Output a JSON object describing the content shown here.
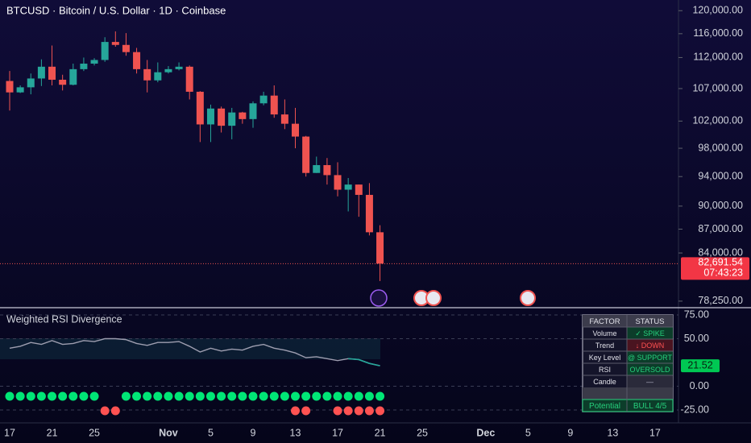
{
  "chart_data": [
    {
      "type": "candlestick",
      "title": "BTCUSD · Bitcoin / U.S. Dollar · 1D · Coinbase",
      "categories": [
        "17",
        null,
        null,
        null,
        "21",
        null,
        null,
        null,
        "25",
        null,
        null,
        null,
        null,
        null,
        null,
        "Nov",
        null,
        null,
        null,
        "5",
        null,
        null,
        null,
        "9",
        null,
        null,
        null,
        "13",
        null,
        null,
        null,
        "17",
        null,
        null,
        null,
        "21",
        null,
        null,
        null,
        "25",
        null,
        null,
        null,
        null,
        null,
        "Dec",
        null,
        null,
        null,
        "5",
        null,
        null,
        null,
        "9",
        null,
        null,
        null,
        "13",
        null,
        null,
        null,
        "17"
      ],
      "open": [
        108200,
        106400,
        107200,
        108600,
        110500,
        108400,
        107600,
        110100,
        111000,
        111600,
        114600,
        114100,
        112900,
        110100,
        108300,
        109600,
        110100,
        110500,
        106500,
        101500,
        103900,
        101300,
        103300,
        102300,
        104700,
        105900,
        103000,
        101600,
        99700,
        94500,
        95600,
        94200,
        92200,
        92900,
        91500,
        86600,
        null,
        null,
        null,
        null,
        null,
        null,
        null,
        null,
        null,
        null,
        null,
        null,
        null,
        null,
        null,
        null,
        null,
        null,
        null,
        null,
        null,
        null,
        null,
        null,
        null,
        null
      ],
      "high": [
        109800,
        107500,
        109400,
        111700,
        114000,
        109200,
        111000,
        112000,
        111900,
        115400,
        116400,
        116100,
        113600,
        111600,
        111200,
        110600,
        111200,
        110700,
        106600,
        104500,
        104200,
        104000,
        103400,
        105000,
        106500,
        107500,
        105300,
        104000,
        99800,
        96800,
        96600,
        96000,
        93800,
        92900,
        93100,
        87500,
        null,
        null,
        null,
        null,
        null,
        null,
        null,
        null,
        null,
        null,
        null,
        null,
        null,
        null,
        null,
        null,
        null,
        null,
        null,
        null,
        null,
        null,
        null,
        null,
        null,
        null
      ],
      "low": [
        103600,
        106300,
        106100,
        107400,
        107500,
        106700,
        107500,
        109800,
        110700,
        111300,
        113800,
        112300,
        109400,
        106400,
        108000,
        109400,
        109900,
        105300,
        98900,
        98900,
        100300,
        99300,
        101600,
        101000,
        104400,
        102500,
        100800,
        98000,
        94000,
        94500,
        92900,
        91300,
        89300,
        88600,
        86200,
        80600,
        null,
        null,
        null,
        null,
        null,
        null,
        null,
        null,
        null,
        null,
        null,
        null,
        null,
        null,
        null,
        null,
        null,
        null,
        null,
        null,
        null,
        null,
        null,
        null,
        null,
        null
      ],
      "close": [
        106400,
        107200,
        108600,
        110500,
        108400,
        107600,
        110100,
        111000,
        111600,
        114600,
        114100,
        112900,
        110100,
        108300,
        109600,
        110100,
        110500,
        106500,
        101500,
        103900,
        101300,
        103300,
        102300,
        104700,
        105900,
        103000,
        101600,
        99700,
        94500,
        95600,
        94200,
        92200,
        92900,
        91500,
        86600,
        82691.54,
        null,
        null,
        null,
        null,
        null,
        null,
        null,
        null,
        null,
        null,
        null,
        null,
        null,
        null,
        null,
        null,
        null,
        null,
        null,
        null,
        null,
        null,
        null,
        null,
        null,
        null
      ],
      "up_color": "#26a69a",
      "down_color": "#ef5350",
      "log_scale": true,
      "ylim": [
        77500,
        121900
      ],
      "yticks": [
        {
          "value": 120000,
          "label": "120,000.00"
        },
        {
          "value": 116000,
          "label": "116,000.00"
        },
        {
          "value": 112000,
          "label": "112,000.00"
        },
        {
          "value": 107000,
          "label": "107,000.00"
        },
        {
          "value": 102000,
          "label": "102,000.00"
        },
        {
          "value": 98000,
          "label": "98,000.00"
        },
        {
          "value": 94000,
          "label": "94,000.00"
        },
        {
          "value": 90000,
          "label": "90,000.00"
        },
        {
          "value": 87000,
          "label": "87,000.00"
        },
        {
          "value": 84000,
          "label": "84,000.00"
        },
        {
          "value": 78250,
          "label": "78,250.00"
        }
      ],
      "last_price": {
        "value": 82691.54,
        "label": "82,691.54"
      },
      "countdown": "07:43:23"
    },
    {
      "type": "line",
      "title": "Weighted RSI Divergence",
      "values": [
        40,
        42,
        46,
        44,
        48,
        44,
        45,
        48,
        47,
        50,
        50,
        49,
        45,
        43,
        46,
        46,
        47,
        42,
        36,
        40,
        37,
        39,
        38,
        42,
        44,
        40,
        38,
        35,
        30,
        31,
        29,
        27,
        29,
        28,
        24,
        21.52,
        null,
        null,
        null,
        null,
        null,
        null,
        null,
        null,
        null,
        null,
        null,
        null,
        null,
        null,
        null,
        null,
        null,
        null,
        null,
        null,
        null,
        null,
        null,
        null,
        null,
        null
      ],
      "color": "#9e9eb0",
      "end_color": "#26a69a",
      "ylim": [
        -38.6,
        81.8
      ],
      "yticks": [
        {
          "value": 75,
          "label": "75.00"
        },
        {
          "value": 50,
          "label": "50.00"
        },
        {
          "value": 0,
          "label": "0.00"
        },
        {
          "value": -25,
          "label": "-25.00"
        }
      ],
      "signals": [
        {
          "color": "#00e676",
          "values": [
            1,
            1,
            1,
            1,
            1,
            1,
            1,
            1,
            1,
            null,
            null,
            1,
            1,
            1,
            1,
            1,
            1,
            1,
            1,
            1,
            1,
            1,
            1,
            1,
            1,
            1,
            1,
            1,
            1,
            1,
            1,
            1,
            1,
            1,
            1,
            1,
            null,
            null,
            null,
            null,
            null,
            null,
            null,
            null,
            null,
            null,
            null,
            null,
            null,
            null,
            null,
            null,
            null,
            null,
            null,
            null,
            null,
            null,
            null,
            null,
            null,
            null
          ]
        },
        {
          "color": "#ff5252",
          "values": [
            null,
            null,
            null,
            null,
            null,
            null,
            null,
            null,
            null,
            1,
            1,
            null,
            null,
            null,
            null,
            null,
            null,
            null,
            null,
            null,
            null,
            null,
            null,
            null,
            null,
            null,
            null,
            1,
            1,
            null,
            null,
            1,
            1,
            1,
            1,
            1,
            null,
            null,
            null,
            null,
            null,
            null,
            null,
            null,
            null,
            null,
            null,
            null,
            null,
            null,
            null,
            null,
            null,
            null,
            null,
            null,
            null,
            null,
            null,
            null,
            null,
            null
          ]
        }
      ],
      "table": {
        "headers": [
          "FACTOR",
          "STATUS"
        ],
        "rows": [
          [
            "Volume",
            "✓ SPIKE"
          ],
          [
            "Trend",
            "↓ DOWN"
          ],
          [
            "Key Level",
            "@ SUPPORT"
          ],
          [
            "RSI",
            "OVERSOLD"
          ],
          [
            "Candle",
            "—"
          ]
        ],
        "footer": [
          "Potential",
          "BULL 4/5"
        ]
      }
    }
  ]
}
